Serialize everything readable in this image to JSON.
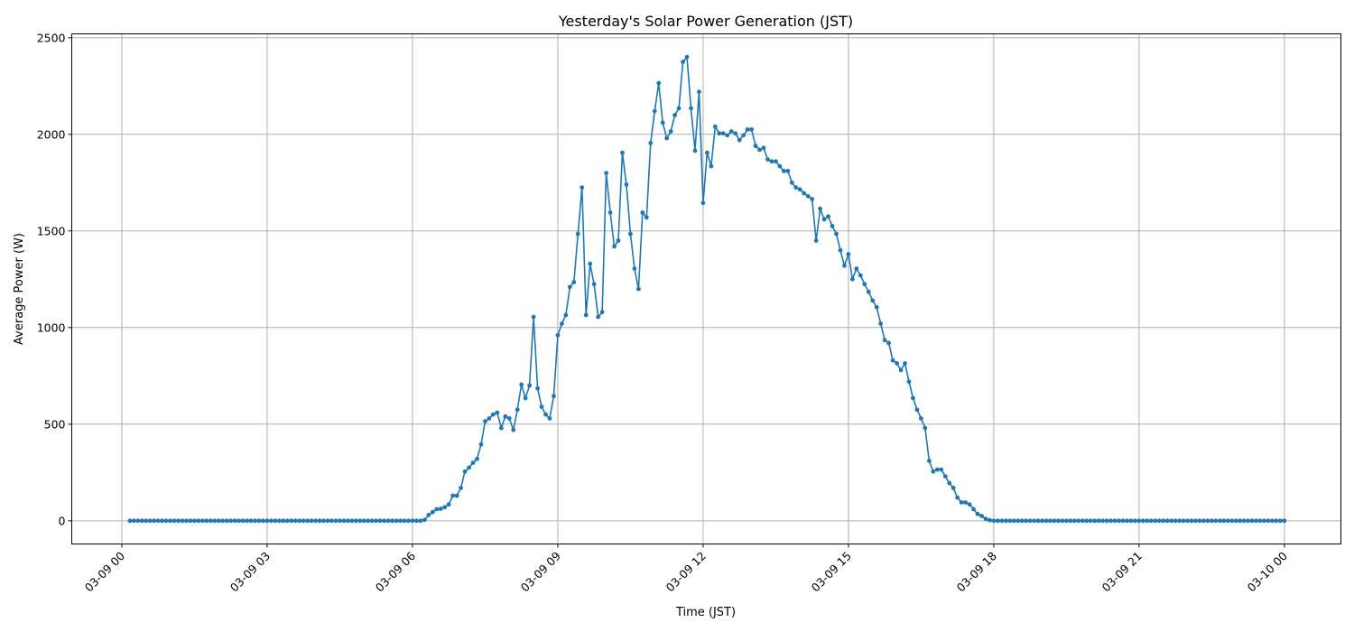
{
  "chart_data": {
    "type": "line",
    "title": "Yesterday's Solar Power Generation (JST)",
    "xlabel": "Time (JST)",
    "ylabel": "Average Power (W)",
    "grid": true,
    "marker": "circle",
    "color": "#1f77b4",
    "xlim": [
      "03-08 22:58",
      "03-10 01:10"
    ],
    "ylim": [
      -120,
      2520
    ],
    "x_ticks": [
      "03-09 00",
      "03-09 03",
      "03-09 06",
      "03-09 09",
      "03-09 12",
      "03-09 15",
      "03-09 18",
      "03-09 21",
      "03-10 00"
    ],
    "y_ticks": [
      0,
      500,
      1000,
      1500,
      2000,
      2500
    ],
    "series": [
      {
        "x": [
          "03-09 00:10",
          "03-09 00:15",
          "03-09 00:20",
          "03-09 00:25",
          "03-09 00:30",
          "03-09 00:35",
          "03-09 00:40",
          "03-09 00:45",
          "03-09 00:50",
          "03-09 00:55",
          "03-09 01:00",
          "03-09 01:05",
          "03-09 01:10",
          "03-09 01:15",
          "03-09 01:20",
          "03-09 01:25",
          "03-09 01:30",
          "03-09 01:35",
          "03-09 01:40",
          "03-09 01:45",
          "03-09 01:50",
          "03-09 01:55",
          "03-09 02:00",
          "03-09 02:05",
          "03-09 02:10",
          "03-09 02:15",
          "03-09 02:20",
          "03-09 02:25",
          "03-09 02:30",
          "03-09 02:35",
          "03-09 02:40",
          "03-09 02:45",
          "03-09 02:50",
          "03-09 02:55",
          "03-09 03:00",
          "03-09 03:05",
          "03-09 03:10",
          "03-09 03:15",
          "03-09 03:20",
          "03-09 03:25",
          "03-09 03:30",
          "03-09 03:35",
          "03-09 03:40",
          "03-09 03:45",
          "03-09 03:50",
          "03-09 03:55",
          "03-09 04:00",
          "03-09 04:05",
          "03-09 04:10",
          "03-09 04:15",
          "03-09 04:20",
          "03-09 04:25",
          "03-09 04:30",
          "03-09 04:35",
          "03-09 04:40",
          "03-09 04:45",
          "03-09 04:50",
          "03-09 04:55",
          "03-09 05:00",
          "03-09 05:05",
          "03-09 05:10",
          "03-09 05:15",
          "03-09 05:20",
          "03-09 05:25",
          "03-09 05:30",
          "03-09 05:35",
          "03-09 05:40",
          "03-09 05:45",
          "03-09 05:50",
          "03-09 05:55",
          "03-09 06:00",
          "03-09 06:05",
          "03-09 06:10",
          "03-09 06:15",
          "03-09 06:20",
          "03-09 06:25",
          "03-09 06:30",
          "03-09 06:35",
          "03-09 06:40",
          "03-09 06:45",
          "03-09 06:50",
          "03-09 06:55",
          "03-09 07:00",
          "03-09 07:05",
          "03-09 07:10",
          "03-09 07:15",
          "03-09 07:20",
          "03-09 07:25",
          "03-09 07:30",
          "03-09 07:35",
          "03-09 07:40",
          "03-09 07:45",
          "03-09 07:50",
          "03-09 07:55",
          "03-09 08:00",
          "03-09 08:05",
          "03-09 08:10",
          "03-09 08:15",
          "03-09 08:20",
          "03-09 08:25",
          "03-09 08:30",
          "03-09 08:35",
          "03-09 08:40",
          "03-09 08:45",
          "03-09 08:50",
          "03-09 08:55",
          "03-09 09:00",
          "03-09 09:05",
          "03-09 09:10",
          "03-09 09:15",
          "03-09 09:20",
          "03-09 09:25",
          "03-09 09:30",
          "03-09 09:35",
          "03-09 09:40",
          "03-09 09:45",
          "03-09 09:50",
          "03-09 09:55",
          "03-09 10:00",
          "03-09 10:05",
          "03-09 10:10",
          "03-09 10:15",
          "03-09 10:20",
          "03-09 10:25",
          "03-09 10:30",
          "03-09 10:35",
          "03-09 10:40",
          "03-09 10:45",
          "03-09 10:50",
          "03-09 10:55",
          "03-09 11:00",
          "03-09 11:05",
          "03-09 11:10",
          "03-09 11:15",
          "03-09 11:20",
          "03-09 11:25",
          "03-09 11:30",
          "03-09 11:35",
          "03-09 11:40",
          "03-09 11:45",
          "03-09 11:50",
          "03-09 11:55",
          "03-09 12:00",
          "03-09 12:05",
          "03-09 12:10",
          "03-09 12:15",
          "03-09 12:20",
          "03-09 12:25",
          "03-09 12:30",
          "03-09 12:35",
          "03-09 12:40",
          "03-09 12:45",
          "03-09 12:50",
          "03-09 12:55",
          "03-09 13:00",
          "03-09 13:05",
          "03-09 13:10",
          "03-09 13:15",
          "03-09 13:20",
          "03-09 13:25",
          "03-09 13:30",
          "03-09 13:35",
          "03-09 13:40",
          "03-09 13:45",
          "03-09 13:50",
          "03-09 13:55",
          "03-09 14:00",
          "03-09 14:05",
          "03-09 14:10",
          "03-09 14:15",
          "03-09 14:20",
          "03-09 14:25",
          "03-09 14:30",
          "03-09 14:35",
          "03-09 14:40",
          "03-09 14:45",
          "03-09 14:50",
          "03-09 14:55",
          "03-09 15:00",
          "03-09 15:05",
          "03-09 15:10",
          "03-09 15:15",
          "03-09 15:20",
          "03-09 15:25",
          "03-09 15:30",
          "03-09 15:35",
          "03-09 15:40",
          "03-09 15:45",
          "03-09 15:50",
          "03-09 15:55",
          "03-09 16:00",
          "03-09 16:05",
          "03-09 16:10",
          "03-09 16:15",
          "03-09 16:20",
          "03-09 16:25",
          "03-09 16:30",
          "03-09 16:35",
          "03-09 16:40",
          "03-09 16:45",
          "03-09 16:50",
          "03-09 16:55",
          "03-09 17:00",
          "03-09 17:05",
          "03-09 17:10",
          "03-09 17:15",
          "03-09 17:20",
          "03-09 17:25",
          "03-09 17:30",
          "03-09 17:35",
          "03-09 17:40",
          "03-09 17:45",
          "03-09 17:50",
          "03-09 17:55",
          "03-09 18:00",
          "03-09 18:05",
          "03-09 18:10",
          "03-09 18:15",
          "03-09 18:20",
          "03-09 18:25",
          "03-09 18:30",
          "03-09 18:35",
          "03-09 18:40",
          "03-09 18:45",
          "03-09 18:50",
          "03-09 18:55",
          "03-09 19:00",
          "03-09 19:05",
          "03-09 19:10",
          "03-09 19:15",
          "03-09 19:20",
          "03-09 19:25",
          "03-09 19:30",
          "03-09 19:35",
          "03-09 19:40",
          "03-09 19:45",
          "03-09 19:50",
          "03-09 19:55",
          "03-09 20:00",
          "03-09 20:05",
          "03-09 20:10",
          "03-09 20:15",
          "03-09 20:20",
          "03-09 20:25",
          "03-09 20:30",
          "03-09 20:35",
          "03-09 20:40",
          "03-09 20:45",
          "03-09 20:50",
          "03-09 20:55",
          "03-09 21:00",
          "03-09 21:05",
          "03-09 21:10",
          "03-09 21:15",
          "03-09 21:20",
          "03-09 21:25",
          "03-09 21:30",
          "03-09 21:35",
          "03-09 21:40",
          "03-09 21:45",
          "03-09 21:50",
          "03-09 21:55",
          "03-09 22:00",
          "03-09 22:05",
          "03-09 22:10",
          "03-09 22:15",
          "03-09 22:20",
          "03-09 22:25",
          "03-09 22:30",
          "03-09 22:35",
          "03-09 22:40",
          "03-09 22:45",
          "03-09 22:50",
          "03-09 22:55",
          "03-09 23:00",
          "03-09 23:05",
          "03-09 23:10",
          "03-09 23:15",
          "03-09 23:20",
          "03-09 23:25",
          "03-09 23:30",
          "03-09 23:35",
          "03-09 23:40",
          "03-09 23:45",
          "03-09 23:50",
          "03-09 23:55",
          "03-10 00:00"
        ],
        "y": [
          0,
          0,
          0,
          0,
          0,
          0,
          0,
          0,
          0,
          0,
          0,
          0,
          0,
          0,
          0,
          0,
          0,
          0,
          0,
          0,
          0,
          0,
          0,
          0,
          0,
          0,
          0,
          0,
          0,
          0,
          0,
          0,
          0,
          0,
          0,
          0,
          0,
          0,
          0,
          0,
          0,
          0,
          0,
          0,
          0,
          0,
          0,
          0,
          0,
          0,
          0,
          0,
          0,
          0,
          0,
          0,
          0,
          0,
          0,
          0,
          0,
          0,
          0,
          0,
          0,
          0,
          0,
          0,
          0,
          0,
          0,
          0,
          0,
          5,
          30,
          45,
          60,
          62,
          70,
          85,
          130,
          130,
          170,
          255,
          275,
          300,
          320,
          395,
          515,
          530,
          550,
          560,
          480,
          540,
          530,
          470,
          575,
          705,
          635,
          700,
          1055,
          685,
          590,
          550,
          530,
          645,
          960,
          1020,
          1065,
          1210,
          1235,
          1485,
          1725,
          1065,
          1330,
          1225,
          1055,
          1080,
          1800,
          1595,
          1420,
          1450,
          1905,
          1740,
          1485,
          1305,
          1200,
          1595,
          1570,
          1955,
          2120,
          2265,
          2060,
          1980,
          2015,
          2100,
          2135,
          2375,
          2400,
          2135,
          1915,
          2220,
          1645,
          1905,
          1835,
          2040,
          2005,
          2005,
          1995,
          2015,
          2005,
          1970,
          1995,
          2025,
          2025,
          1940,
          1920,
          1930,
          1870,
          1860,
          1860,
          1835,
          1810,
          1810,
          1750,
          1725,
          1715,
          1695,
          1680,
          1665,
          1450,
          1615,
          1560,
          1575,
          1525,
          1485,
          1400,
          1320,
          1380,
          1250,
          1305,
          1270,
          1225,
          1185,
          1140,
          1105,
          1020,
          935,
          920,
          830,
          815,
          780,
          815,
          720,
          635,
          575,
          530,
          480,
          310,
          255,
          265,
          265,
          230,
          195,
          170,
          120,
          95,
          95,
          85,
          60,
          35,
          25,
          10,
          3,
          0,
          0,
          0,
          0,
          0,
          0,
          0,
          0,
          0,
          0,
          0,
          0,
          0,
          0,
          0,
          0,
          0,
          0,
          0,
          0,
          0,
          0,
          0,
          0,
          0,
          0,
          0,
          0,
          0,
          0,
          0,
          0,
          0,
          0,
          0,
          0,
          0,
          0,
          0,
          0,
          0,
          0,
          0,
          0,
          0,
          0,
          0,
          0,
          0,
          0,
          0,
          0,
          0,
          0,
          0,
          0,
          0,
          0,
          0,
          0,
          0,
          0,
          0,
          0,
          0,
          0,
          0,
          0,
          0,
          0,
          0,
          0,
          0
        ]
      }
    ]
  }
}
